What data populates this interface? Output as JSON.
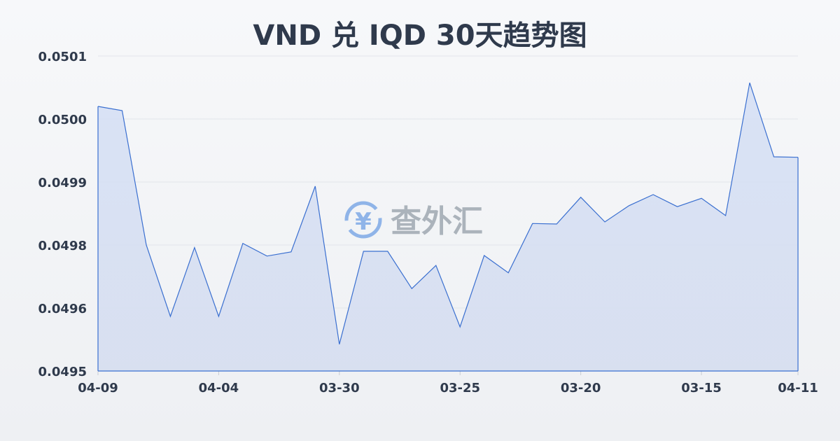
{
  "chart_data": {
    "type": "area",
    "title": "VND 兑 IQD 30天趋势图",
    "xlabel": "",
    "ylabel": "",
    "ylim": [
      0.0495,
      0.0501
    ],
    "y_tick_labels": [
      "0.0501",
      "0.0500",
      "0.0499",
      "0.0498",
      "0.0496",
      "0.0495"
    ],
    "x_tick_labels": [
      {
        "index": 0,
        "label": "04-09"
      },
      {
        "index": 5,
        "label": "04-04"
      },
      {
        "index": 10,
        "label": "03-30"
      },
      {
        "index": 15,
        "label": "03-25"
      },
      {
        "index": 20,
        "label": "03-20"
      },
      {
        "index": 25,
        "label": "03-15"
      },
      {
        "index": 29,
        "label": "04-11"
      }
    ],
    "values": [
      0.050004,
      0.049996,
      0.04974,
      0.049604,
      0.049735,
      0.049604,
      0.049743,
      0.049719,
      0.049727,
      0.049852,
      0.049551,
      0.049728,
      0.049728,
      0.049657,
      0.049701,
      0.049584,
      0.04972,
      0.049687,
      0.049781,
      0.04978,
      0.049831,
      0.049784,
      0.049815,
      0.049836,
      0.049813,
      0.049829,
      0.049796,
      0.050049,
      0.049908,
      0.049907
    ],
    "grid": true,
    "line_color": "#3a6fd0",
    "fill_color": "#d6e0f5"
  },
  "watermark": "查外汇"
}
